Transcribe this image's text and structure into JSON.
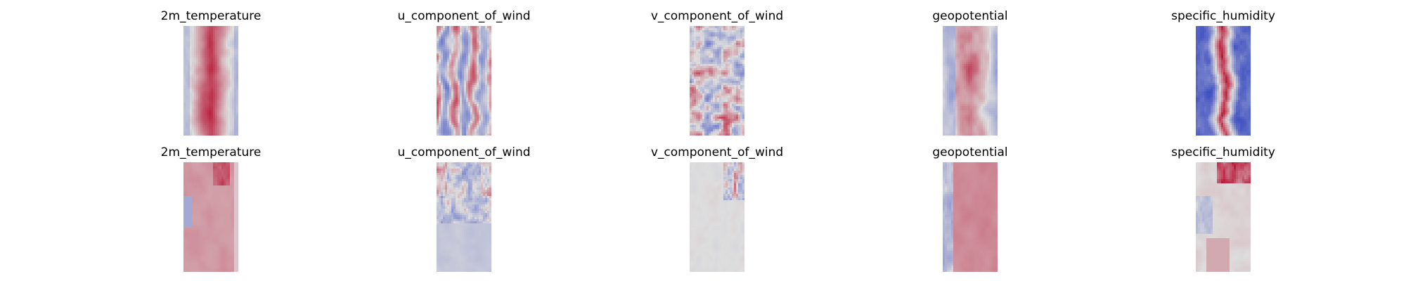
{
  "chart_data": {
    "type": "heatmap",
    "colormap": "coolwarm",
    "axes_visible": false,
    "colors": {
      "cold": "#3b4cc0",
      "neutral": "#dddddd",
      "warm": "#b40426"
    },
    "rows": [
      {
        "panels": [
          {
            "title": "2m_temperature",
            "pattern": "temperature_full"
          },
          {
            "title": "u_component_of_wind",
            "pattern": "u_wind_full"
          },
          {
            "title": "v_component_of_wind",
            "pattern": "v_wind_full"
          },
          {
            "title": "geopotential",
            "pattern": "geopotential_full"
          },
          {
            "title": "specific_humidity",
            "pattern": "humidity_full"
          }
        ]
      },
      {
        "panels": [
          {
            "title": "2m_temperature",
            "pattern": "temperature_diff"
          },
          {
            "title": "u_component_of_wind",
            "pattern": "u_wind_diff"
          },
          {
            "title": "v_component_of_wind",
            "pattern": "v_wind_diff"
          },
          {
            "title": "geopotential",
            "pattern": "geopotential_diff"
          },
          {
            "title": "specific_humidity",
            "pattern": "humidity_diff"
          }
        ]
      }
    ]
  }
}
